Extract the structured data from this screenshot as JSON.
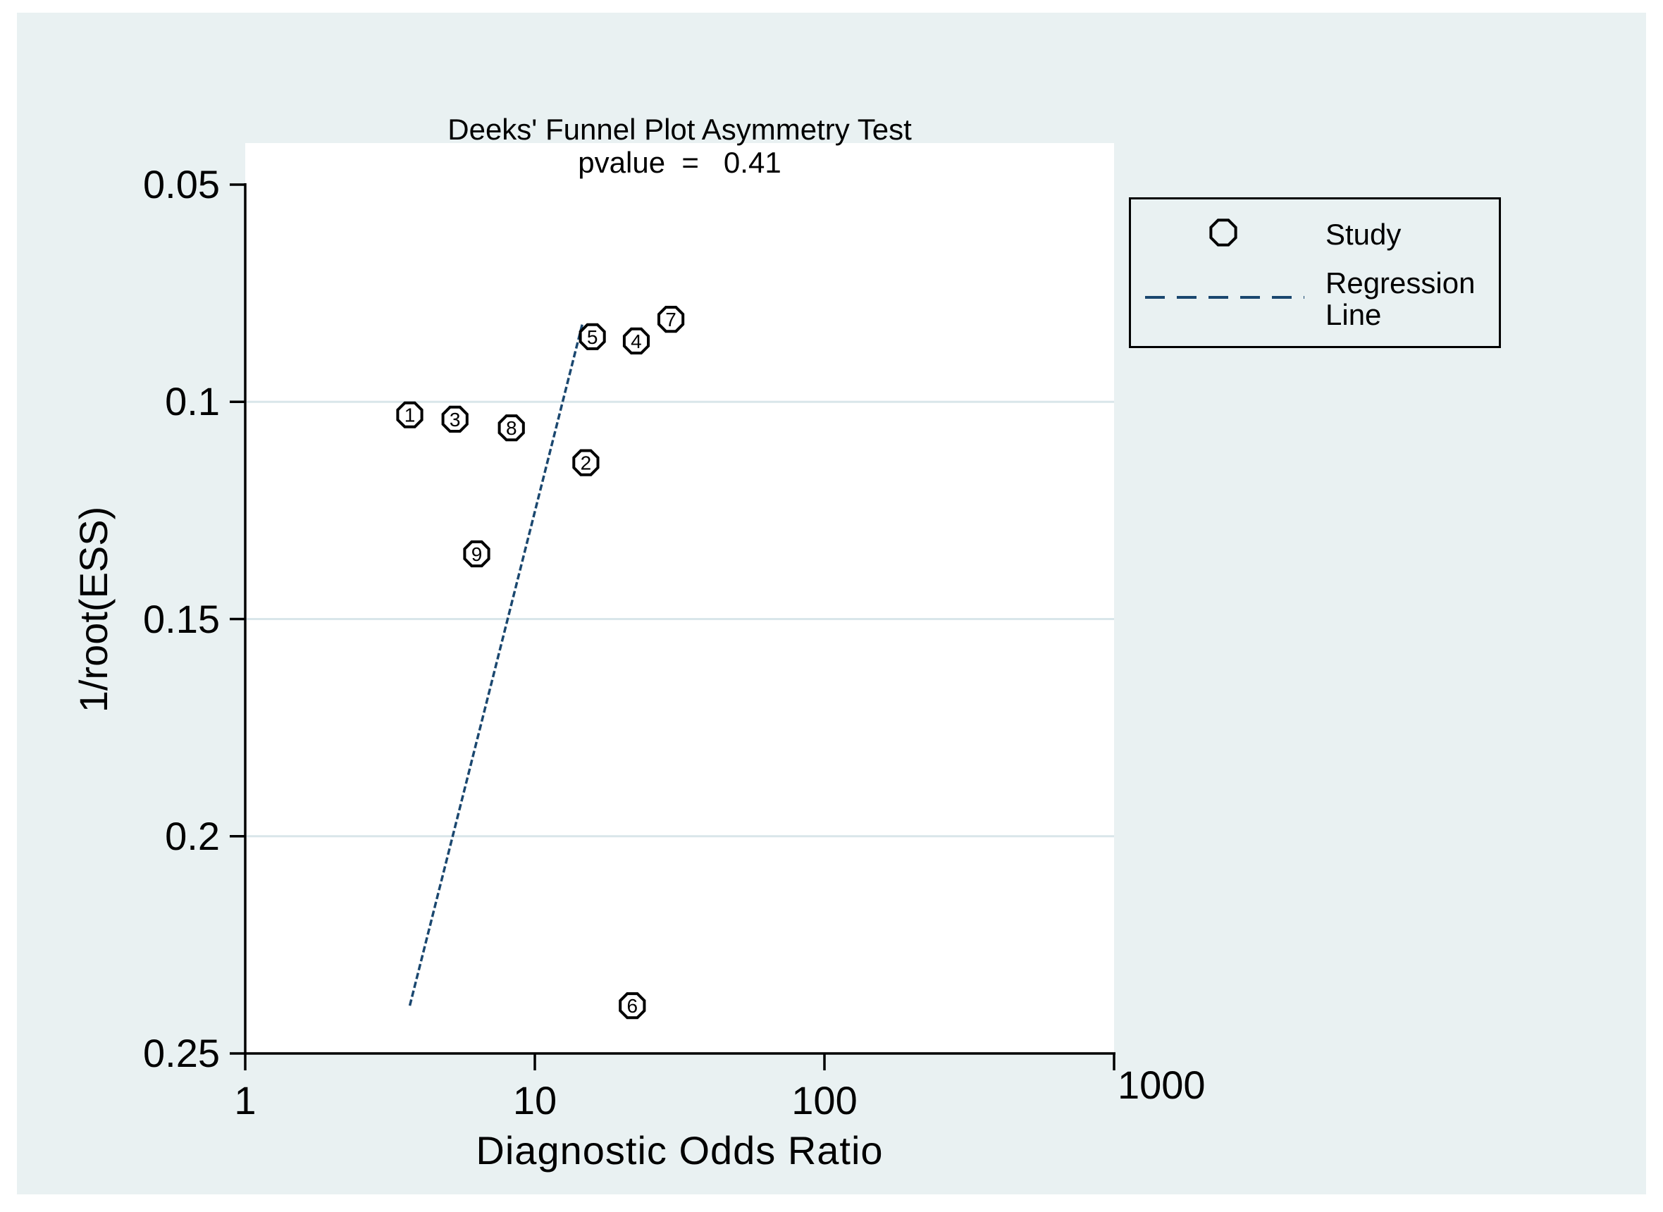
{
  "chart": {
    "title": "Deeks' Funnel Plot Asymmetry Test",
    "subtitle": "pvalue  =   0.41"
  },
  "axes": {
    "x": {
      "title": "Diagnostic Odds Ratio",
      "scale": "log10",
      "ticks": [
        {
          "label": "1",
          "value": 1
        },
        {
          "label": "10",
          "value": 10
        },
        {
          "label": "100",
          "value": 100
        },
        {
          "label": "1000",
          "value": 1000
        }
      ]
    },
    "y": {
      "title": "1/root(ESS)",
      "scale": "linear",
      "direction": "values increase downward",
      "ticks": [
        {
          "label": "0.05",
          "value": 0.05
        },
        {
          "label": "0.1",
          "value": 0.1
        },
        {
          "label": "0.15",
          "value": 0.15
        },
        {
          "label": "0.2",
          "value": 0.2
        },
        {
          "label": "0.25",
          "value": 0.25
        }
      ]
    }
  },
  "legend": {
    "items": [
      {
        "symbol": "circle",
        "label": "Study"
      },
      {
        "symbol": "dashed-line",
        "label": "Regression Line"
      }
    ]
  },
  "colors": {
    "panel_background": "#e9f1f2",
    "plot_background": "#ffffff",
    "gridline": "#d9e6ea",
    "axis": "#000000",
    "regression_line": "#1a476f",
    "marker_outline": "#000000",
    "marker_fill": "#ffffff"
  },
  "chart_data": {
    "type": "scatter",
    "title": "Deeks' Funnel Plot Asymmetry Test",
    "subtitle": "pvalue  =   0.41",
    "pvalue": "0.41",
    "xlabel": "Diagnostic Odds Ratio",
    "ylabel": "1/root(ESS)",
    "x_scale": "log10",
    "xlim": [
      1,
      1000
    ],
    "ylim": [
      0.05,
      0.25
    ],
    "y_inverted": true,
    "grid": "horizontal gridlines at 0.1, 0.15, 0.2",
    "legend_position": "outside right-top",
    "points": [
      {
        "study": 1,
        "dor": 3.7,
        "inv_root_ess": 0.103
      },
      {
        "study": 2,
        "dor": 15.0,
        "inv_root_ess": 0.114
      },
      {
        "study": 3,
        "dor": 5.3,
        "inv_root_ess": 0.104
      },
      {
        "study": 4,
        "dor": 22.4,
        "inv_root_ess": 0.086
      },
      {
        "study": 5,
        "dor": 15.8,
        "inv_root_ess": 0.085
      },
      {
        "study": 6,
        "dor": 21.7,
        "inv_root_ess": 0.239
      },
      {
        "study": 7,
        "dor": 29.5,
        "inv_root_ess": 0.081
      },
      {
        "study": 8,
        "dor": 8.3,
        "inv_root_ess": 0.106
      },
      {
        "study": 9,
        "dor": 6.3,
        "inv_root_ess": 0.135
      }
    ],
    "regression_line": {
      "x_start": 3.7,
      "y_start": 0.239,
      "x_end": 14.6,
      "y_end": 0.082
    }
  }
}
